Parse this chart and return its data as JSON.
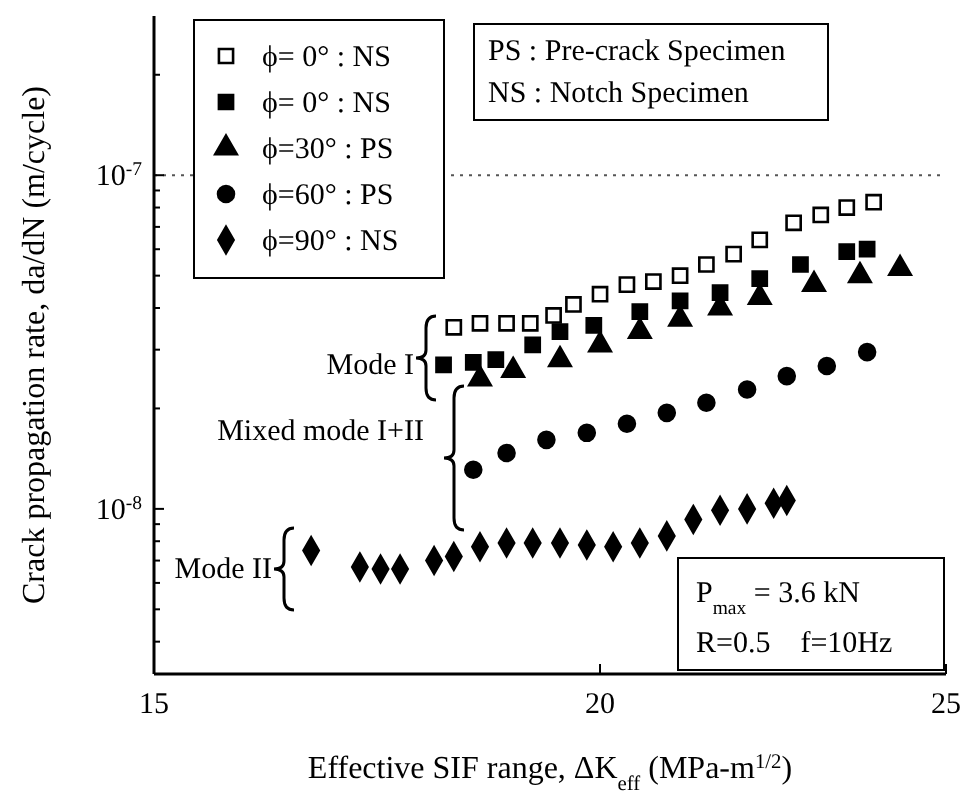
{
  "chart_data": {
    "type": "scatter",
    "log": "xy",
    "xlabel": "Effective SIF range, ΔK$_{eff}$ (MPa-m$^{1/2}$)",
    "ylabel": "Crack propagation rate, da/dN (m/cycle)",
    "xlim": [
      15,
      25
    ],
    "xticks": [
      15,
      20,
      25
    ],
    "ylim": [
      3.2e-09,
      3e-07
    ],
    "yticks": [
      {
        "value": 4e-09,
        "label": null
      },
      {
        "value": 5e-09,
        "label": null
      },
      {
        "value": 6e-09,
        "label": null
      },
      {
        "value": 7e-09,
        "label": null
      },
      {
        "value": 8e-09,
        "label": null
      },
      {
        "value": 9e-09,
        "label": null
      },
      {
        "value": 1e-08,
        "label": "10$^{-8}$"
      },
      {
        "value": 2e-08,
        "label": null
      },
      {
        "value": 3e-08,
        "label": null
      },
      {
        "value": 4e-08,
        "label": null
      },
      {
        "value": 5e-08,
        "label": null
      },
      {
        "value": 6e-08,
        "label": null
      },
      {
        "value": 7e-08,
        "label": null
      },
      {
        "value": 8e-08,
        "label": null
      },
      {
        "value": 9e-08,
        "label": null
      },
      {
        "value": 1e-07,
        "label": "10$^{-7}$"
      },
      {
        "value": 2e-07,
        "label": null
      }
    ],
    "legend": "top left",
    "grid": false,
    "ref_lines": [
      {
        "axis": "y",
        "value": 1e-07,
        "label": null,
        "line_style": "dotted",
        "color": "#555555"
      }
    ],
    "annotations": [
      "Mode I",
      "Mixed mode I+II",
      "Mode II",
      "PS : Pre-crack Specimen",
      "NS : Notch Specimen",
      "P$_{max}$ = 3.6 kN",
      "R=0.5    f=10Hz"
    ],
    "series": [
      {
        "name": "ϕ= 0° : NS",
        "color": "#ffffff",
        "marker": "square",
        "x": [
          18.2,
          18.51,
          18.83,
          19.12,
          19.41,
          19.66,
          20.0,
          20.35,
          20.7,
          21.06,
          21.42,
          21.8,
          22.17,
          22.66,
          23.06,
          23.45,
          23.86
        ],
        "values": [
          3.5e-08,
          3.6e-08,
          3.6e-08,
          3.6e-08,
          3.8e-08,
          4.1e-08,
          4.4e-08,
          4.7e-08,
          4.8e-08,
          5e-08,
          5.4e-08,
          5.8e-08,
          6.4e-08,
          7.2e-08,
          7.6e-08,
          8e-08,
          8.3e-08
        ]
      },
      {
        "name": "ϕ= 0° : NS",
        "color": "#000000",
        "marker": "square",
        "x": [
          18.08,
          18.43,
          18.7,
          19.15,
          19.49,
          19.92,
          20.52,
          21.06,
          21.61,
          22.17,
          22.76,
          23.45,
          23.76
        ],
        "values": [
          2.7e-08,
          2.75e-08,
          2.8e-08,
          3.1e-08,
          3.4e-08,
          3.55e-08,
          3.9e-08,
          4.2e-08,
          4.45e-08,
          4.9e-08,
          5.4e-08,
          5.9e-08,
          6e-08
        ]
      },
      {
        "name": "ϕ=30° : PS",
        "color": "#000000",
        "marker": "triangle",
        "x": [
          18.51,
          18.91,
          19.49,
          20.0,
          20.52,
          21.06,
          21.61,
          22.17,
          22.96,
          23.65,
          24.27
        ],
        "values": [
          2.45e-08,
          2.6e-08,
          2.8e-08,
          3.1e-08,
          3.4e-08,
          3.7e-08,
          4e-08,
          4.3e-08,
          4.7e-08,
          5e-08,
          5.25e-08
        ]
      },
      {
        "name": "ϕ=60° : PS",
        "color": "#000000",
        "marker": "circle",
        "x": [
          18.43,
          18.83,
          19.32,
          19.83,
          20.35,
          20.88,
          21.42,
          21.99,
          22.56,
          23.15,
          23.76
        ],
        "values": [
          1.31e-08,
          1.47e-08,
          1.61e-08,
          1.69e-08,
          1.8e-08,
          1.94e-08,
          2.08e-08,
          2.28e-08,
          2.5e-08,
          2.68e-08,
          2.95e-08
        ]
      },
      {
        "name": "ϕ=90° : NS",
        "color": "#000000",
        "marker": "diamond",
        "x": [
          16.6,
          17.13,
          17.36,
          17.58,
          17.97,
          18.2,
          18.51,
          18.83,
          19.15,
          19.49,
          19.83,
          20.17,
          20.52,
          20.88,
          21.24,
          21.61,
          21.99,
          22.37,
          22.56
        ],
        "values": [
          7.5e-09,
          6.7e-09,
          6.6e-09,
          6.6e-09,
          7e-09,
          7.2e-09,
          7.7e-09,
          7.9e-09,
          7.9e-09,
          7.9e-09,
          7.8e-09,
          7.7e-09,
          7.9e-09,
          8.3e-09,
          9.3e-09,
          9.9e-09,
          1e-08,
          1.04e-08,
          1.06e-08
        ]
      }
    ]
  }
}
